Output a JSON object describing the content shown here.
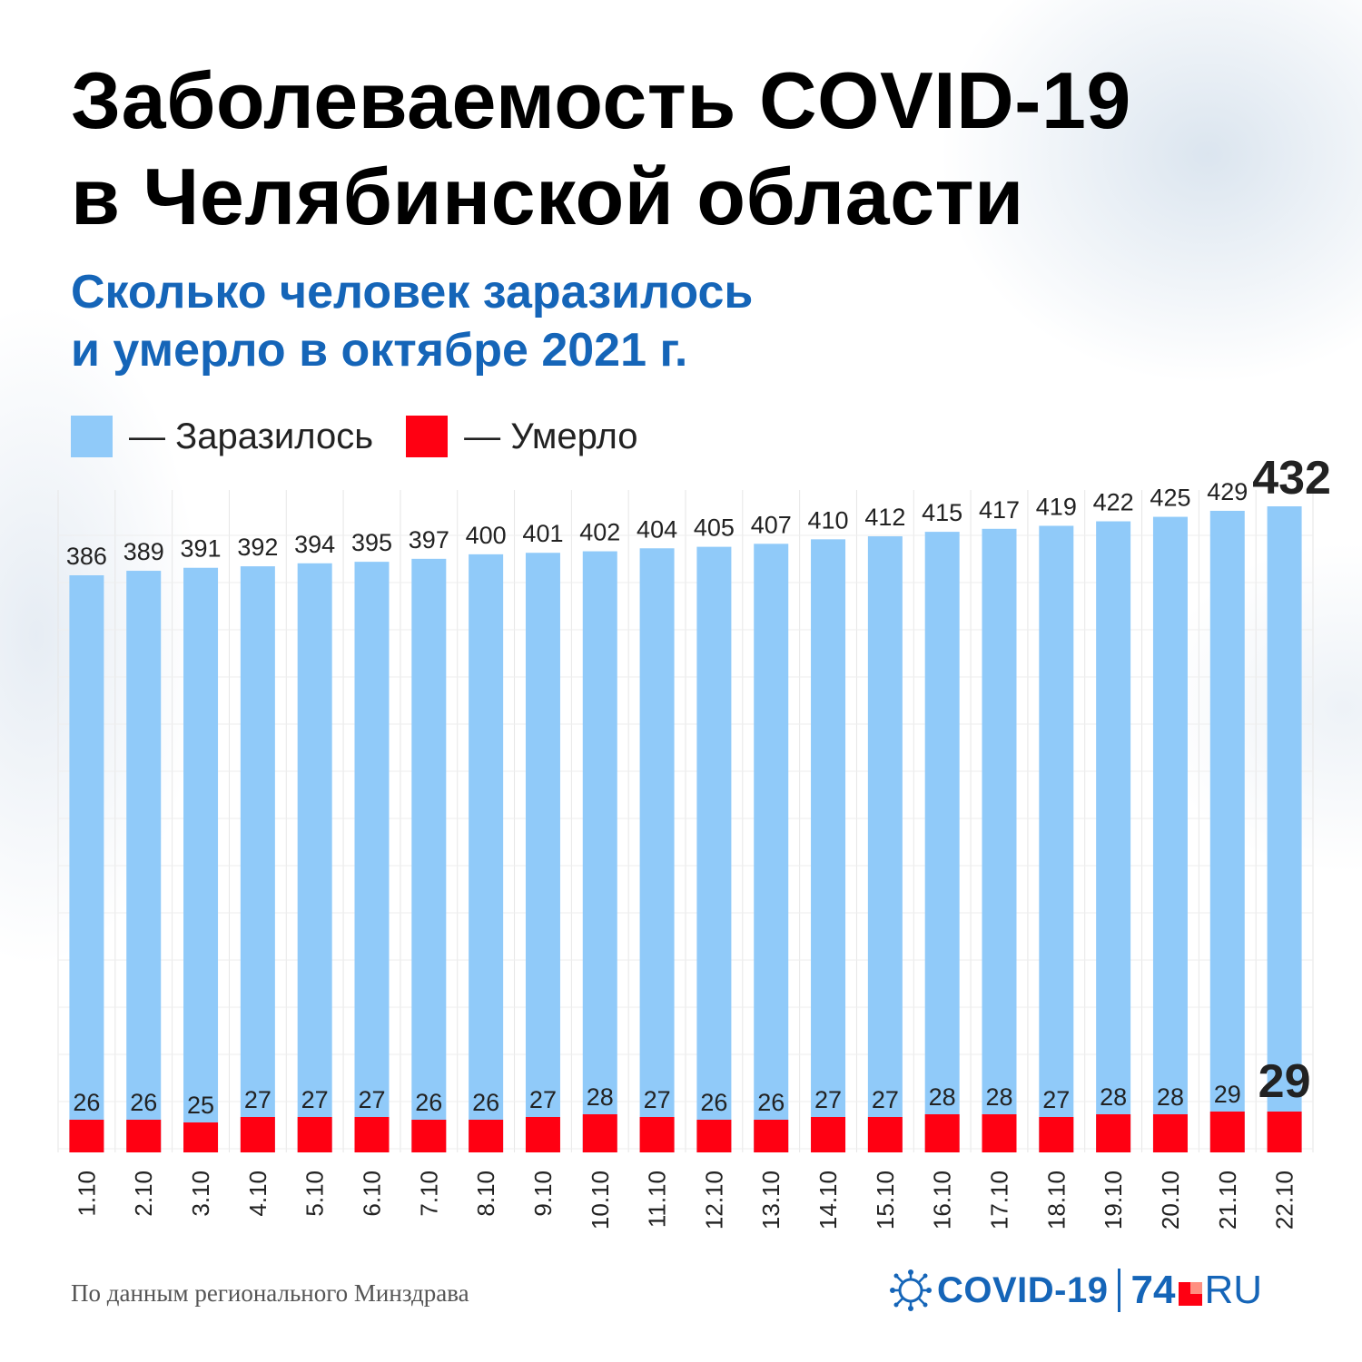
{
  "header": {
    "title_line1": "Заболеваемость COVID-19",
    "title_line2": "в Челябинской области",
    "subtitle_line1": "Сколько человек заразилось",
    "subtitle_line2": "и умерло в октябре 2021 г."
  },
  "legend": {
    "infected_label": "— Заразилось",
    "died_label": "— Умерло"
  },
  "colors": {
    "infected": "#90caf9",
    "died": "#ff0012",
    "title": "#000000",
    "subtitle": "#1565b8",
    "grid": "#e6e6e6"
  },
  "chart_data": {
    "type": "bar",
    "categories": [
      "1.10",
      "2.10",
      "3.10",
      "4.10",
      "5.10",
      "6.10",
      "7.10",
      "8.10",
      "9.10",
      "10.10",
      "11.10",
      "12.10",
      "13.10",
      "14.10",
      "15.10",
      "16.10",
      "17.10",
      "18.10",
      "19.10",
      "20.10",
      "21.10",
      "22.10"
    ],
    "series": [
      {
        "name": "Заразилось",
        "values": [
          386,
          389,
          391,
          392,
          394,
          395,
          397,
          400,
          401,
          402,
          404,
          405,
          407,
          410,
          412,
          415,
          417,
          419,
          422,
          425,
          429,
          432
        ]
      },
      {
        "name": "Умерло",
        "values": [
          26,
          26,
          25,
          27,
          27,
          27,
          26,
          26,
          27,
          28,
          27,
          26,
          26,
          27,
          27,
          28,
          28,
          27,
          28,
          28,
          29,
          29
        ]
      }
    ],
    "title": "Заболеваемость COVID-19 в Челябинской области",
    "subtitle": "Сколько человек заразилось и умерло в октябре 2021 г.",
    "ylim": [
      0,
      440
    ],
    "grid": true,
    "legend_position": "top-left",
    "highlight_last": true
  },
  "footer": {
    "source": "По данным регионального Минздрава",
    "logo_covid": "COVID-19",
    "logo_74": "74",
    "logo_ru": "RU"
  }
}
